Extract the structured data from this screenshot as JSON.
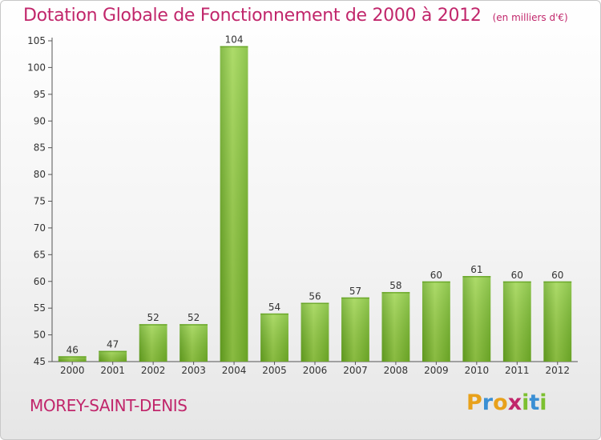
{
  "chart_data": {
    "type": "bar",
    "title": "Dotation Globale de Fonctionnement de 2000 à 2012",
    "unit_label": "(en milliers d'€)",
    "categories": [
      "2000",
      "2001",
      "2002",
      "2003",
      "2004",
      "2005",
      "2006",
      "2007",
      "2008",
      "2009",
      "2010",
      "2011",
      "2012"
    ],
    "values": [
      46,
      47,
      52,
      52,
      104,
      54,
      56,
      57,
      58,
      60,
      61,
      60,
      60
    ],
    "ylim": [
      45,
      105
    ],
    "yticks": [
      45,
      50,
      55,
      60,
      65,
      70,
      75,
      80,
      85,
      90,
      95,
      100,
      105
    ],
    "grid": false,
    "bar_color": "#7cc030"
  },
  "footer": {
    "city": "MOREY-SAINT-DENIS",
    "logo_letters": [
      "P",
      "r",
      "o",
      "x",
      "i",
      "t",
      "i"
    ],
    "logo_colors": [
      "#e8a11b",
      "#3a8fd4",
      "#e8a11b",
      "#c1266b",
      "#7cc030",
      "#3a8fd4",
      "#7cc030"
    ]
  }
}
